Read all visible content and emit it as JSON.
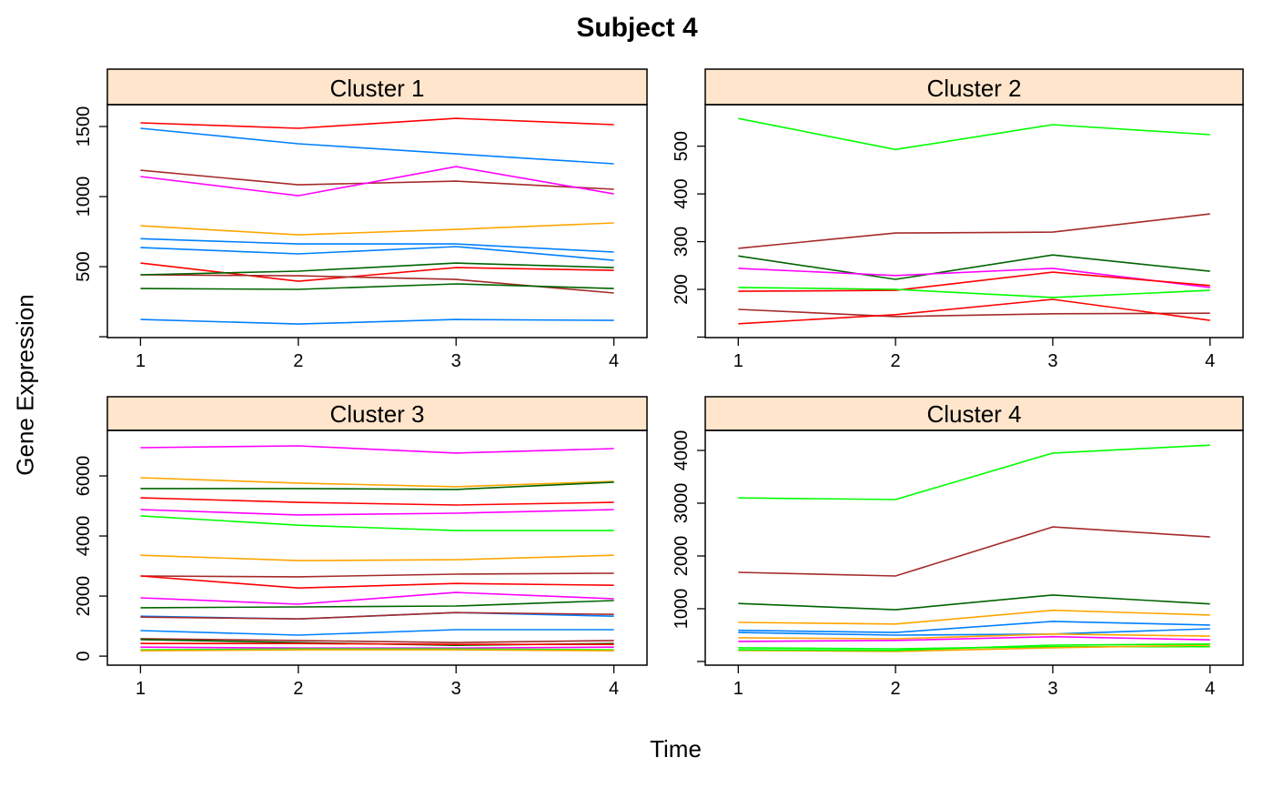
{
  "chart_data": {
    "type": "line",
    "title": "Subject 4",
    "xlabel": "Time",
    "ylabel": "Gene Expression",
    "colors": {
      "red": "#FF0000",
      "blue": "#0080FF",
      "brown": "#A52A2A",
      "magenta": "#FF00FF",
      "orange": "#FFA500",
      "darkgreen": "#006400",
      "green": "#00FF00"
    },
    "strip_color": "#FFE5CC",
    "x": [
      1,
      2,
      3,
      4
    ],
    "xlim": [
      0.79,
      4.21
    ],
    "panels": [
      {
        "name": "Cluster 1",
        "ylim": [
          -6,
          1656
        ],
        "yticks": [
          0,
          500,
          1000,
          1500
        ],
        "ytick_labels": [
          "",
          "500",
          "1000",
          "1500"
        ],
        "series": [
          {
            "color": "red",
            "values": [
              1526,
              1487,
              1558,
              1513
            ]
          },
          {
            "color": "blue",
            "values": [
              1487,
              1377,
              1305,
              1234
            ]
          },
          {
            "color": "brown",
            "values": [
              1188,
              1084,
              1110,
              1052
            ]
          },
          {
            "color": "magenta",
            "values": [
              1143,
              1006,
              1214,
              1019
            ]
          },
          {
            "color": "orange",
            "values": [
              792,
              727,
              766,
              812
            ]
          },
          {
            "color": "blue",
            "values": [
              700,
              662,
              662,
              604
            ]
          },
          {
            "color": "blue",
            "values": [
              636,
              591,
              643,
              545
            ]
          },
          {
            "color": "red",
            "values": [
              526,
              396,
              493,
              474
            ]
          },
          {
            "color": "brown",
            "values": [
              442,
              435,
              409,
              312
            ]
          },
          {
            "color": "darkgreen",
            "values": [
              442,
              468,
              526,
              493
            ]
          },
          {
            "color": "darkgreen",
            "values": [
              344,
              338,
              377,
              344
            ]
          },
          {
            "color": "blue",
            "values": [
              123,
              91,
              123,
              117
            ]
          }
        ]
      },
      {
        "name": "Cluster 2",
        "ylim": [
          99,
          587
        ],
        "yticks": [
          100,
          200,
          300,
          400,
          500
        ],
        "ytick_labels": [
          "",
          "200",
          "300",
          "400",
          "500"
        ],
        "series": [
          {
            "color": "green",
            "values": [
              558,
              493,
              545,
              524
            ]
          },
          {
            "color": "brown",
            "values": [
              286,
              318,
              320,
              358
            ]
          },
          {
            "color": "darkgreen",
            "values": [
              270,
              221,
              272,
              238
            ]
          },
          {
            "color": "magenta",
            "values": [
              244,
              229,
              244,
              204
            ]
          },
          {
            "color": "red",
            "values": [
              196,
              198,
              236,
              208
            ]
          },
          {
            "color": "green",
            "values": [
              204,
              200,
              183,
              198
            ]
          },
          {
            "color": "brown",
            "values": [
              158,
              143,
              149,
              150
            ]
          },
          {
            "color": "red",
            "values": [
              128,
              147,
              179,
              135
            ]
          }
        ]
      },
      {
        "name": "Cluster 3",
        "ylim": [
          -300,
          7515
        ],
        "yticks": [
          0,
          2000,
          4000,
          6000
        ],
        "ytick_labels": [
          "0",
          "2000",
          "4000",
          "6000"
        ],
        "series": [
          {
            "color": "magenta",
            "values": [
              6940,
              7000,
              6760,
              6910
            ]
          },
          {
            "color": "orange",
            "values": [
              5940,
              5760,
              5640,
              5820
            ]
          },
          {
            "color": "darkgreen",
            "values": [
              5580,
              5580,
              5550,
              5790
            ]
          },
          {
            "color": "red",
            "values": [
              5270,
              5120,
              5030,
              5120
            ]
          },
          {
            "color": "magenta",
            "values": [
              4880,
              4700,
              4760,
              4880
            ]
          },
          {
            "color": "green",
            "values": [
              4670,
              4360,
              4180,
              4180
            ]
          },
          {
            "color": "orange",
            "values": [
              3360,
              3180,
              3210,
              3360
            ]
          },
          {
            "color": "brown",
            "values": [
              2670,
              2640,
              2730,
              2760
            ]
          },
          {
            "color": "red",
            "values": [
              2670,
              2270,
              2420,
              2360
            ]
          },
          {
            "color": "magenta",
            "values": [
              1940,
              1730,
              2120,
              1910
            ]
          },
          {
            "color": "darkgreen",
            "values": [
              1610,
              1640,
              1670,
              1850
            ]
          },
          {
            "color": "blue",
            "values": [
              1330,
              1240,
              1450,
              1330
            ]
          },
          {
            "color": "brown",
            "values": [
              1300,
              1240,
              1450,
              1390
            ]
          },
          {
            "color": "blue",
            "values": [
              850,
              700,
              880,
              880
            ]
          },
          {
            "color": "brown",
            "values": [
              580,
              520,
              450,
              520
            ]
          },
          {
            "color": "darkgreen",
            "values": [
              550,
              450,
              360,
              420
            ]
          },
          {
            "color": "red",
            "values": [
              420,
              420,
              390,
              390
            ]
          },
          {
            "color": "magenta",
            "values": [
              300,
              270,
              270,
              300
            ]
          },
          {
            "color": "green",
            "values": [
              210,
              240,
              240,
              210
            ]
          },
          {
            "color": "orange",
            "values": [
              180,
              210,
              210,
              180
            ]
          }
        ]
      },
      {
        "name": "Cluster 4",
        "ylim": [
          -70,
          4380
        ],
        "yticks": [
          0,
          1000,
          2000,
          3000,
          4000
        ],
        "ytick_labels": [
          "",
          "1000",
          "2000",
          "3000",
          "4000"
        ],
        "series": [
          {
            "color": "green",
            "values": [
              3100,
              3070,
              3950,
              4100
            ]
          },
          {
            "color": "brown",
            "values": [
              1690,
              1620,
              2550,
              2360
            ]
          },
          {
            "color": "darkgreen",
            "values": [
              1100,
              980,
              1260,
              1090
            ]
          },
          {
            "color": "orange",
            "values": [
              740,
              710,
              970,
              880
            ]
          },
          {
            "color": "blue",
            "values": [
              590,
              550,
              760,
              690
            ]
          },
          {
            "color": "blue",
            "values": [
              550,
              500,
              520,
              620
            ]
          },
          {
            "color": "orange",
            "values": [
              450,
              430,
              520,
              480
            ]
          },
          {
            "color": "magenta",
            "values": [
              380,
              400,
              470,
              410
            ]
          },
          {
            "color": "green",
            "values": [
              260,
              240,
              280,
              280
            ]
          },
          {
            "color": "orange",
            "values": [
              210,
              190,
              260,
              310
            ]
          },
          {
            "color": "green",
            "values": [
              220,
              210,
              310,
              330
            ]
          }
        ]
      }
    ]
  }
}
